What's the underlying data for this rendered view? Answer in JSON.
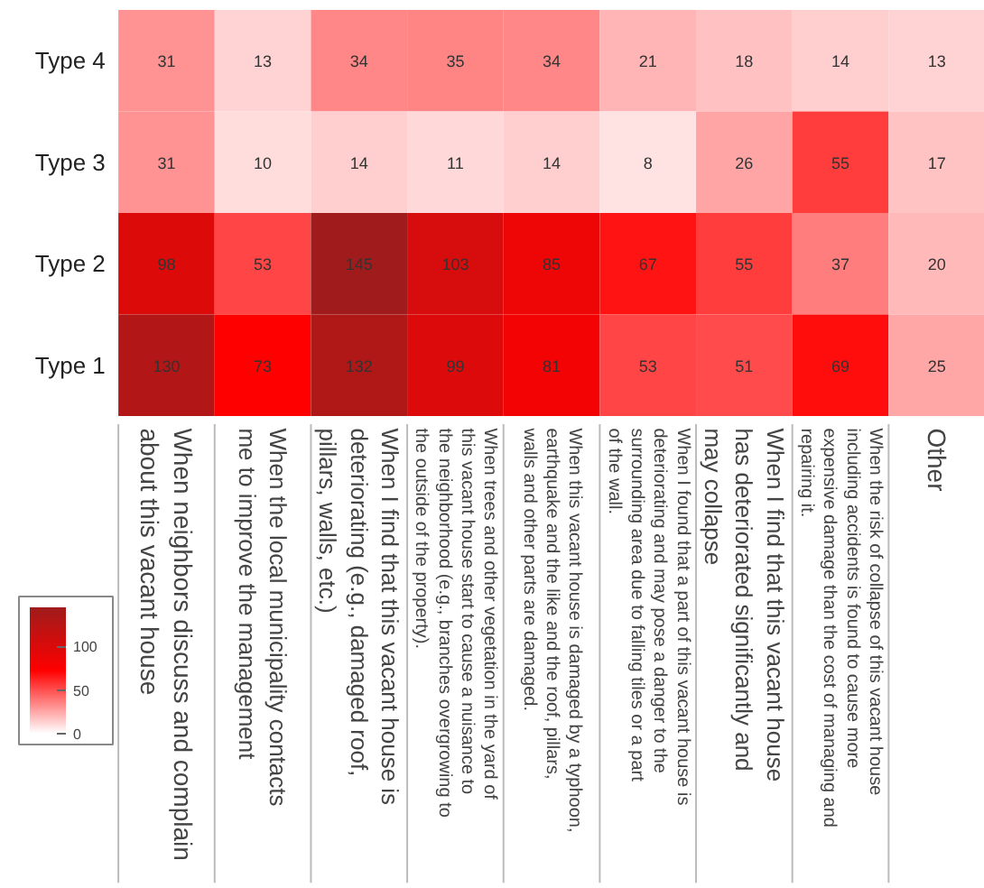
{
  "chart_data": {
    "type": "heatmap",
    "categories": [
      "When neighbors discuss and complain about this vacant house",
      "When the local municipality contacts me to improve the management",
      "When I find that this vacant house is deteriorating (e.g., damaged roof, pillars, walls, etc.)",
      "When trees and other vegetation in the yard of this vacant house start to cause a nuisance to the neighborhood (e.g., branches overgrowing to the outside of the property).",
      "When this vacant house is damaged by a typhoon, earthquake and the like and the roof, pillars, walls and other parts are damaged.",
      "When I found that a part of this vacant house is deteriorating and may pose a danger to the surrounding area due to falling tiles or a part of the wall.",
      "When I find that this vacant house has deteriorated significantly and may collapse",
      "When the risk of collapse of this vacant house including accidents is found to cause more expensive damage than the cost of managing and repairing it.",
      "Other"
    ],
    "y_categories": [
      "Type 4",
      "Type 3",
      "Type 2",
      "Type 1"
    ],
    "cells": [
      [
        31,
        13,
        34,
        35,
        34,
        21,
        18,
        14,
        13
      ],
      [
        31,
        10,
        14,
        11,
        14,
        8,
        26,
        55,
        17
      ],
      [
        98,
        53,
        145,
        103,
        85,
        67,
        55,
        37,
        20
      ],
      [
        130,
        73,
        132,
        99,
        81,
        53,
        51,
        69,
        25
      ]
    ],
    "data_labels": true,
    "clim": [
      0,
      145
    ],
    "cticks": [
      0,
      50,
      100
    ]
  }
}
